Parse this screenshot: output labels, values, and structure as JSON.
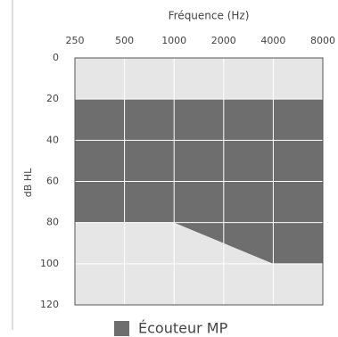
{
  "chart_data": {
    "type": "area",
    "x_label": "Fréquence (Hz)",
    "y_label": "dB HL",
    "categories": [
      "250",
      "500",
      "1000",
      "2000",
      "4000",
      "8000"
    ],
    "series": [
      {
        "name": "Écouteur MP",
        "color": "#6e6e6e",
        "top": [
          20,
          20,
          20,
          20,
          20,
          20
        ],
        "values": [
          80,
          80,
          80,
          90,
          100,
          100
        ]
      }
    ],
    "ylim": [
      0,
      120
    ],
    "yticks": [
      0,
      20,
      40,
      60,
      80,
      100,
      120
    ],
    "y_inverted": true,
    "grid": true,
    "background": "#e6e6e6"
  }
}
